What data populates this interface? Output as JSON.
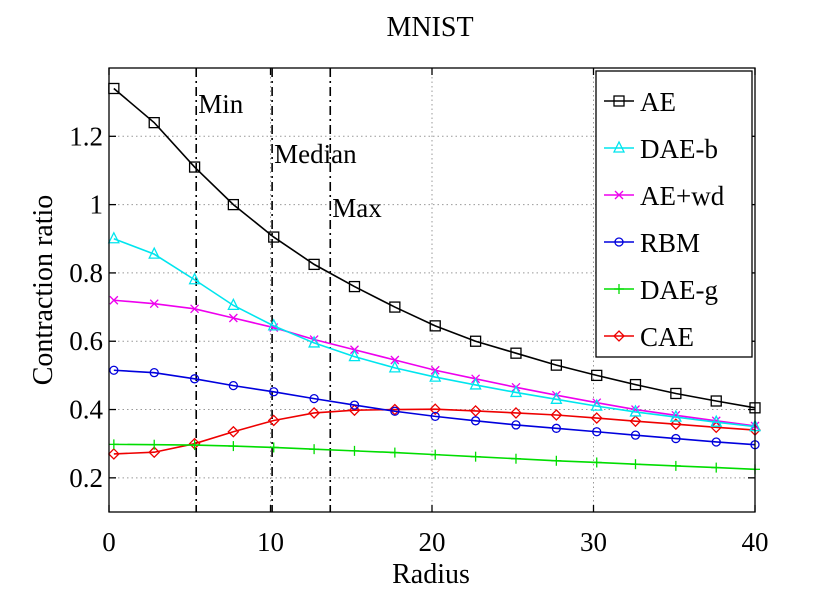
{
  "chart_data": {
    "type": "line",
    "title": "MNIST",
    "xlabel": "Radius",
    "ylabel": "Contraction ratio",
    "xlim": [
      0,
      40
    ],
    "ylim": [
      0.1,
      1.4
    ],
    "xticks": [
      0,
      10,
      20,
      30,
      40
    ],
    "xtick_labels": [
      "0",
      "10",
      "20",
      "30",
      "40"
    ],
    "yticks": [
      0.2,
      0.4,
      0.6,
      0.8,
      1.0,
      1.2
    ],
    "ytick_labels": [
      "0.2",
      "0.4",
      "0.6",
      "0.8",
      "1",
      "1.2"
    ],
    "grid": true,
    "legend_position": "top-right",
    "vlines": [
      {
        "x": 5.4,
        "label": "Min"
      },
      {
        "x": 10.1,
        "label": "Median"
      },
      {
        "x": 13.7,
        "label": "Max"
      }
    ],
    "x": [
      0.3,
      2.8,
      5.3,
      7.7,
      10.2,
      12.7,
      15.2,
      17.7,
      20.2,
      22.7,
      25.2,
      27.7,
      30.2,
      32.6,
      35.1,
      37.6,
      40
    ],
    "series": [
      {
        "name": "AE",
        "color": "#000000",
        "marker": "square",
        "values": [
          1.34,
          1.24,
          1.11,
          1.0,
          0.905,
          0.825,
          0.76,
          0.7,
          0.645,
          0.6,
          0.565,
          0.53,
          0.5,
          0.473,
          0.447,
          0.425,
          0.405
        ]
      },
      {
        "name": "DAE-b",
        "color": "#00e5ee",
        "marker": "triangle",
        "values": [
          0.9,
          0.855,
          0.78,
          0.705,
          0.645,
          0.595,
          0.555,
          0.522,
          0.495,
          0.472,
          0.45,
          0.43,
          0.41,
          0.393,
          0.378,
          0.363,
          0.35
        ]
      },
      {
        "name": "AE+wd",
        "color": "#ee00ee",
        "marker": "x",
        "values": [
          0.72,
          0.71,
          0.695,
          0.668,
          0.64,
          0.605,
          0.575,
          0.545,
          0.515,
          0.49,
          0.465,
          0.442,
          0.42,
          0.4,
          0.383,
          0.367,
          0.352
        ]
      },
      {
        "name": "RBM",
        "color": "#0000dd",
        "marker": "circle",
        "values": [
          0.515,
          0.508,
          0.49,
          0.47,
          0.452,
          0.432,
          0.413,
          0.395,
          0.38,
          0.367,
          0.355,
          0.345,
          0.335,
          0.325,
          0.315,
          0.305,
          0.297
        ]
      },
      {
        "name": "DAE-g",
        "color": "#00dd00",
        "marker": "plus",
        "values": [
          0.298,
          0.297,
          0.296,
          0.293,
          0.289,
          0.284,
          0.279,
          0.274,
          0.268,
          0.262,
          0.256,
          0.25,
          0.245,
          0.24,
          0.235,
          0.23,
          0.225
        ]
      },
      {
        "name": "CAE",
        "color": "#ee0000",
        "marker": "diamond",
        "values": [
          0.27,
          0.275,
          0.3,
          0.335,
          0.368,
          0.39,
          0.398,
          0.4,
          0.401,
          0.396,
          0.39,
          0.384,
          0.375,
          0.366,
          0.357,
          0.348,
          0.34
        ]
      }
    ]
  }
}
